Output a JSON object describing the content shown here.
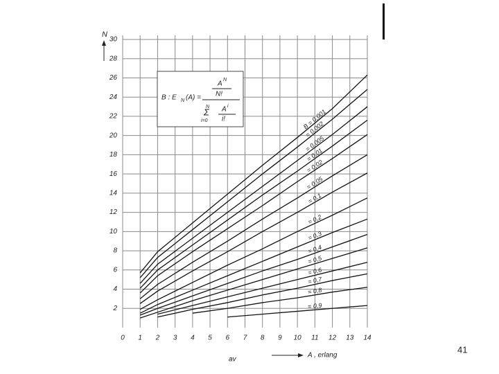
{
  "chart_data": {
    "type": "line",
    "ylabel": "N",
    "xlabel": "A , erlang",
    "xunit": "av",
    "x": [
      1,
      2,
      4,
      6,
      8,
      10,
      12,
      14
    ],
    "xlim": [
      0,
      14
    ],
    "xticks": [
      0,
      1,
      2,
      3,
      4,
      5,
      6,
      7,
      8,
      9,
      10,
      11,
      12,
      13,
      14
    ],
    "ylim": [
      0,
      30
    ],
    "yticks": [
      2,
      4,
      6,
      8,
      10,
      12,
      14,
      16,
      18,
      20,
      22,
      24,
      26,
      28,
      30
    ],
    "grid": true,
    "color": "#111111",
    "series": [
      {
        "name": "B = 0,001",
        "values": [
          5.7,
          7.9,
          10.9,
          13.9,
          16.9,
          19.8,
          22.8,
          26.3
        ]
      },
      {
        "name": "= 0,002",
        "values": [
          5.2,
          7.3,
          10.2,
          13.1,
          16.0,
          18.8,
          21.7,
          24.8
        ]
      },
      {
        "name": "= 0,005",
        "values": [
          4.6,
          6.6,
          9.3,
          12.0,
          14.7,
          17.4,
          20.1,
          23.0
        ]
      },
      {
        "name": "= 0,01",
        "values": [
          4.1,
          6.0,
          8.6,
          11.2,
          13.8,
          16.3,
          18.9,
          21.6
        ]
      },
      {
        "name": "= 0,02",
        "values": [
          3.6,
          5.4,
          7.9,
          10.3,
          12.7,
          15.2,
          17.6,
          20.1
        ]
      },
      {
        "name": "= 0,05",
        "values": [
          3.0,
          4.5,
          6.8,
          9.0,
          11.3,
          13.5,
          15.8,
          18.0
        ]
      },
      {
        "name": "= 0,1",
        "values": [
          2.5,
          3.8,
          5.9,
          7.9,
          10.0,
          12.0,
          14.1,
          16.1
        ]
      },
      {
        "name": "= 0,2",
        "values": [
          1.9,
          2.9,
          4.7,
          6.5,
          8.2,
          10.0,
          11.7,
          13.5
        ]
      },
      {
        "name": "= 0,3",
        "values": [
          1.5,
          2.4,
          3.9,
          5.4,
          6.9,
          8.4,
          9.9,
          11.3
        ]
      },
      {
        "name": "= 0,4",
        "values": [
          1.3,
          2.0,
          3.3,
          4.6,
          5.9,
          7.1,
          8.4,
          9.7
        ]
      },
      {
        "name": "= 0,5",
        "values": [
          1.0,
          1.6,
          2.8,
          3.9,
          5.0,
          6.1,
          7.2,
          8.3
        ]
      },
      {
        "name": "= 0,6",
        "values": [
          null,
          1.4,
          2.3,
          3.2,
          4.1,
          5.0,
          5.9,
          6.8
        ]
      },
      {
        "name": "= 0,7",
        "values": [
          null,
          1.1,
          1.9,
          2.6,
          3.4,
          4.1,
          4.9,
          5.6
        ]
      },
      {
        "name": "= 0,8",
        "values": [
          null,
          null,
          1.5,
          2.0,
          2.6,
          3.1,
          3.7,
          4.2
        ]
      },
      {
        "name": "= 0,9",
        "values": [
          null,
          null,
          null,
          1.1,
          1.4,
          1.7,
          2.0,
          2.3
        ]
      }
    ],
    "formula": {
      "lhs": "B : E",
      "lhs_sub": "N",
      "lhs_arg": "(A) =",
      "num": "A",
      "num_sup": "N",
      "num_den": "N!",
      "sum": "Σ",
      "sum_top": "N",
      "sum_bottom": "i=0",
      "term": "A",
      "term_sup": "i",
      "term_den": "i!"
    }
  },
  "slide": {
    "page_number": "41"
  }
}
